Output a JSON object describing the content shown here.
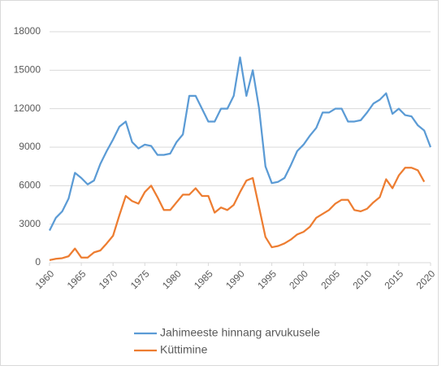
{
  "chart_data": {
    "type": "line",
    "x": [
      1960,
      1961,
      1962,
      1963,
      1964,
      1965,
      1966,
      1967,
      1968,
      1969,
      1970,
      1971,
      1972,
      1973,
      1974,
      1975,
      1976,
      1977,
      1978,
      1979,
      1980,
      1981,
      1982,
      1983,
      1984,
      1985,
      1986,
      1987,
      1988,
      1989,
      1990,
      1991,
      1992,
      1993,
      1994,
      1995,
      1996,
      1997,
      1998,
      1999,
      2000,
      2001,
      2002,
      2003,
      2004,
      2005,
      2006,
      2007,
      2008,
      2009,
      2010,
      2011,
      2012,
      2013,
      2014,
      2015,
      2016,
      2017,
      2018,
      2019,
      2020
    ],
    "series": [
      {
        "name": "Jahimeeste hinnang arvukusele",
        "color": "#5b9bd5",
        "values": [
          2500,
          3500,
          4000,
          5000,
          7000,
          6600,
          6100,
          6400,
          7700,
          8700,
          9600,
          10600,
          11000,
          9400,
          8900,
          9200,
          9100,
          8400,
          8400,
          8500,
          9400,
          10000,
          13000,
          13000,
          12000,
          11000,
          11000,
          12000,
          12000,
          13000,
          16000,
          13000,
          15000,
          12000,
          7500,
          6200,
          6300,
          6600,
          7600,
          8700,
          9200,
          9900,
          10500,
          11700,
          11700,
          12000,
          12000,
          11000,
          11000,
          11100,
          11700,
          12400,
          12700,
          13200,
          11600,
          12000,
          11500,
          11400,
          10700,
          10300,
          9000
        ]
      },
      {
        "name": "Küttimine",
        "color": "#ed7d31",
        "values": [
          200,
          300,
          350,
          500,
          1100,
          400,
          400,
          800,
          950,
          1500,
          2100,
          3700,
          5200,
          4800,
          4600,
          5500,
          6000,
          5100,
          4100,
          4100,
          4700,
          5300,
          5300,
          5800,
          5200,
          5200,
          3900,
          4300,
          4100,
          4500,
          5500,
          6400,
          6600,
          4300,
          2000,
          1200,
          1300,
          1500,
          1800,
          2200,
          2400,
          2800,
          3500,
          3800,
          4100,
          4600,
          4900,
          4900,
          4100,
          4000,
          4200,
          4700,
          5100,
          6500,
          5800,
          6800,
          7400,
          7400,
          7200,
          6300,
          null
        ]
      }
    ],
    "xlim": [
      1960,
      2020
    ],
    "xticks": [
      1960,
      1965,
      1970,
      1975,
      1980,
      1985,
      1990,
      1995,
      2000,
      2005,
      2010,
      2015,
      2020
    ],
    "ylim": [
      0,
      18000
    ],
    "yticks": [
      0,
      3000,
      6000,
      9000,
      12000,
      15000,
      18000
    ],
    "grid": true,
    "legend": "bottom"
  }
}
